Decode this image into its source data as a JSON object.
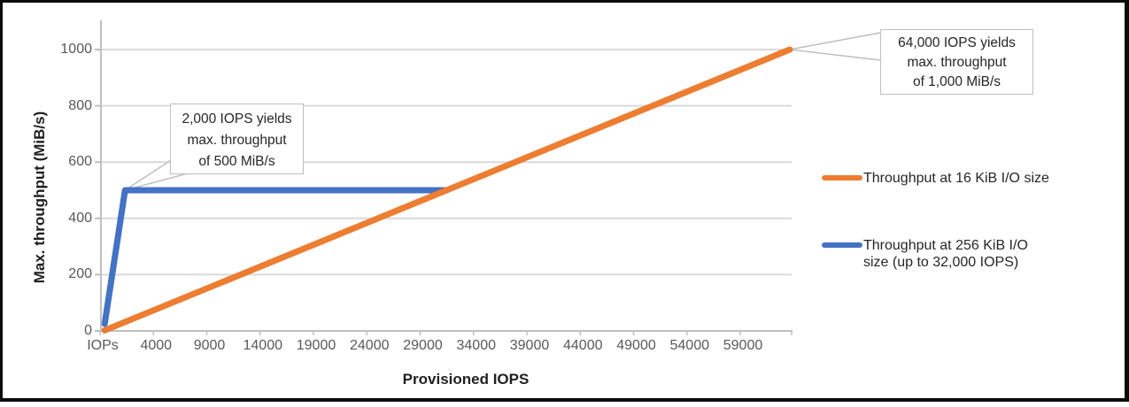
{
  "chart_data": {
    "type": "line",
    "title": "",
    "x_axis": {
      "title": "Provisioned IOPS",
      "tick_labels": [
        "IOPs",
        "4000",
        "9000",
        "14000",
        "19000",
        "24000",
        "29000",
        "34000",
        "39000",
        "44000",
        "49000",
        "54000",
        "59000"
      ],
      "range_iops": [
        0,
        64600
      ]
    },
    "y_axis": {
      "title": "Max. throughput (MiB/s)",
      "ticks": [
        0,
        200,
        400,
        600,
        800,
        1000
      ],
      "range": [
        0,
        1100
      ]
    },
    "grid": "horizontal",
    "series": [
      {
        "name": "Throughput at 256 KiB I/O size (up to 32,000 IOPS)",
        "color": "#4472C4",
        "points": [
          {
            "iops": 100,
            "mibps": 25
          },
          {
            "iops": 2000,
            "mibps": 500
          },
          {
            "iops": 32000,
            "mibps": 500
          }
        ]
      },
      {
        "name": "Throughput at 16 KiB I/O size",
        "color": "#ED7D31",
        "points": [
          {
            "iops": 100,
            "mibps": 2
          },
          {
            "iops": 64000,
            "mibps": 1000
          }
        ]
      }
    ],
    "annotations": [
      {
        "lines": [
          "2,000 IOPS yields",
          "max. throughput",
          "of 500 MiB/s"
        ],
        "target": {
          "iops": 2000,
          "mibps": 500
        }
      },
      {
        "lines": [
          "64,000 IOPS yields",
          "max. throughput",
          "of 1,000 MiB/s"
        ],
        "target": {
          "iops": 64000,
          "mibps": 1000
        }
      }
    ],
    "legend": {
      "position": "right",
      "entries": [
        {
          "color": "#ED7D31",
          "lines": [
            "Throughput at 16 KiB I/O size"
          ]
        },
        {
          "color": "#4472C4",
          "lines": [
            "Throughput at 256 KiB I/O",
            "size (up to 32,000 IOPS)"
          ]
        }
      ]
    }
  },
  "colors": {
    "orange": "#ED7D31",
    "blue": "#4472C4",
    "gridline": "#D9D9D9",
    "axis_line": "#BFBFBF",
    "tick_text": "#595959",
    "callout_border": "#BFBFBF"
  }
}
